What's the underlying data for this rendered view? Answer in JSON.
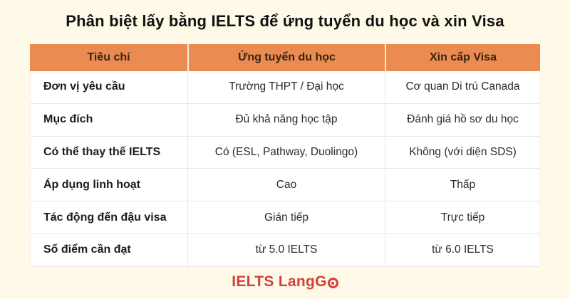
{
  "page": {
    "title": "Phân biệt lấy bằng IELTS để ứng tuyển du học và xin Visa"
  },
  "table": {
    "headers": [
      "Tiêu chí",
      "Ứng tuyển du học",
      "Xin cấp Visa"
    ],
    "rows": [
      {
        "criteria": "Đơn vị yêu cầu",
        "study": "Trường THPT / Đại học",
        "visa": "Cơ quan Di trú Canada"
      },
      {
        "criteria": "Mục đích",
        "study": "Đủ khả năng học tập",
        "visa": "Đánh giá hồ sơ du học"
      },
      {
        "criteria": "Có thể thay thế IELTS",
        "study": "Có (ESL, Pathway, Duolingo)",
        "visa": "Không (với diện SDS)"
      },
      {
        "criteria": "Áp dụng linh hoạt",
        "study": "Cao",
        "visa": "Thấp"
      },
      {
        "criteria": "Tác động đến đậu visa",
        "study": "Gián tiếp",
        "visa": "Trực tiếp"
      },
      {
        "criteria": "Số điểm cần đạt",
        "study": "từ 5.0 IELTS",
        "visa": "từ 6.0 IELTS"
      }
    ]
  },
  "footer": {
    "logo_text": "IELTS LangG",
    "logo_icon": "circle-dot-o-icon"
  },
  "colors": {
    "background": "#FFF9E7",
    "header_bg": "#EA8C51",
    "header_text": "#3A2313",
    "row_bg": "#FFFFFF",
    "divider": "#E9E7E3",
    "title_text": "#111111",
    "body_text": "#2B2B2B",
    "logo_red": "#D2403C"
  }
}
